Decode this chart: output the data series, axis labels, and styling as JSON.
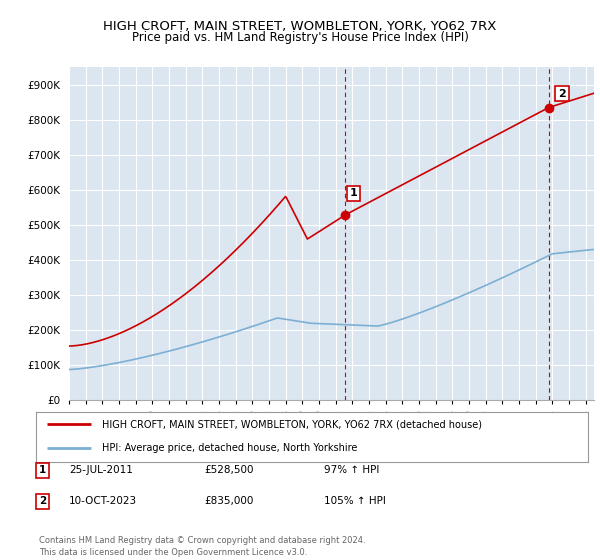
{
  "title": "HIGH CROFT, MAIN STREET, WOMBLETON, YORK, YO62 7RX",
  "subtitle": "Price paid vs. HM Land Registry's House Price Index (HPI)",
  "ylim": [
    0,
    950000
  ],
  "xlim_start": 1995.0,
  "xlim_end": 2026.5,
  "red_line_color": "#cc0000",
  "blue_line_color": "#7bafd4",
  "plot_bg_color": "#dce6f1",
  "grid_color": "#ffffff",
  "sale1_x": 2011.56,
  "sale1_y": 528500,
  "sale1_label": "1",
  "sale2_x": 2023.78,
  "sale2_y": 835000,
  "sale2_label": "2",
  "dashed_line_color": "#cc0000",
  "legend_red_label": "HIGH CROFT, MAIN STREET, WOMBLETON, YORK, YO62 7RX (detached house)",
  "legend_blue_label": "HPI: Average price, detached house, North Yorkshire",
  "table_row1": [
    "1",
    "25-JUL-2011",
    "£528,500",
    "97% ↑ HPI"
  ],
  "table_row2": [
    "2",
    "10-OCT-2023",
    "£835,000",
    "105% ↑ HPI"
  ],
  "footer": "Contains HM Land Registry data © Crown copyright and database right 2024.\nThis data is licensed under the Open Government Licence v3.0.",
  "ytick_vals": [
    0,
    100000,
    200000,
    300000,
    400000,
    500000,
    600000,
    700000,
    800000,
    900000
  ],
  "ytick_labels": [
    "£0",
    "£100K",
    "£200K",
    "£300K",
    "£400K",
    "£500K",
    "£600K",
    "£700K",
    "£800K",
    "£900K"
  ]
}
